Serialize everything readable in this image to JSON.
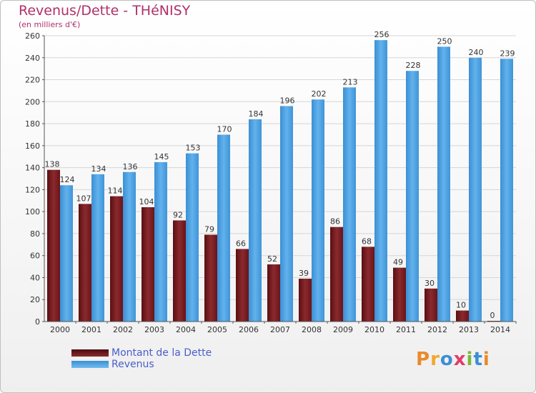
{
  "header": {
    "title": "Revenus/Dette - THéNISY",
    "subtitle": "(en milliers d'€)"
  },
  "chart_data": {
    "type": "bar",
    "title": "Revenus/Dette - THéNISY",
    "subtitle": "(en milliers d'€)",
    "xlabel": "",
    "ylabel": "",
    "ylim": [
      0,
      260
    ],
    "yticks": [
      0,
      20,
      40,
      60,
      80,
      100,
      120,
      140,
      160,
      180,
      200,
      220,
      240,
      260
    ],
    "grid": true,
    "legend_position": "bottom-left",
    "categories": [
      "2000",
      "2001",
      "2002",
      "2003",
      "2004",
      "2005",
      "2006",
      "2007",
      "2008",
      "2009",
      "2010",
      "2011",
      "2012",
      "2013",
      "2014"
    ],
    "series": [
      {
        "name": "Montant de la Dette",
        "color": "#7a1e22",
        "values": [
          138,
          107,
          114,
          104,
          92,
          79,
          66,
          52,
          39,
          86,
          68,
          49,
          30,
          10,
          0
        ]
      },
      {
        "name": "Revenus",
        "color": "#4da3e3",
        "values": [
          124,
          134,
          136,
          145,
          153,
          170,
          184,
          196,
          202,
          213,
          256,
          228,
          250,
          240,
          239
        ]
      }
    ]
  },
  "legend": {
    "items": [
      {
        "label": "Montant de la Dette",
        "color": "#7a1e22"
      },
      {
        "label": "Revenus",
        "color": "#4da3e3"
      }
    ]
  },
  "logo": {
    "letters": [
      "P",
      "r",
      "o",
      "x",
      "i",
      "t",
      "i"
    ],
    "colors": [
      "#e98a2a",
      "#f0a830",
      "#3a8fd6",
      "#e23b6a",
      "#7ab83a",
      "#3a8fd6",
      "#e98a2a"
    ]
  }
}
